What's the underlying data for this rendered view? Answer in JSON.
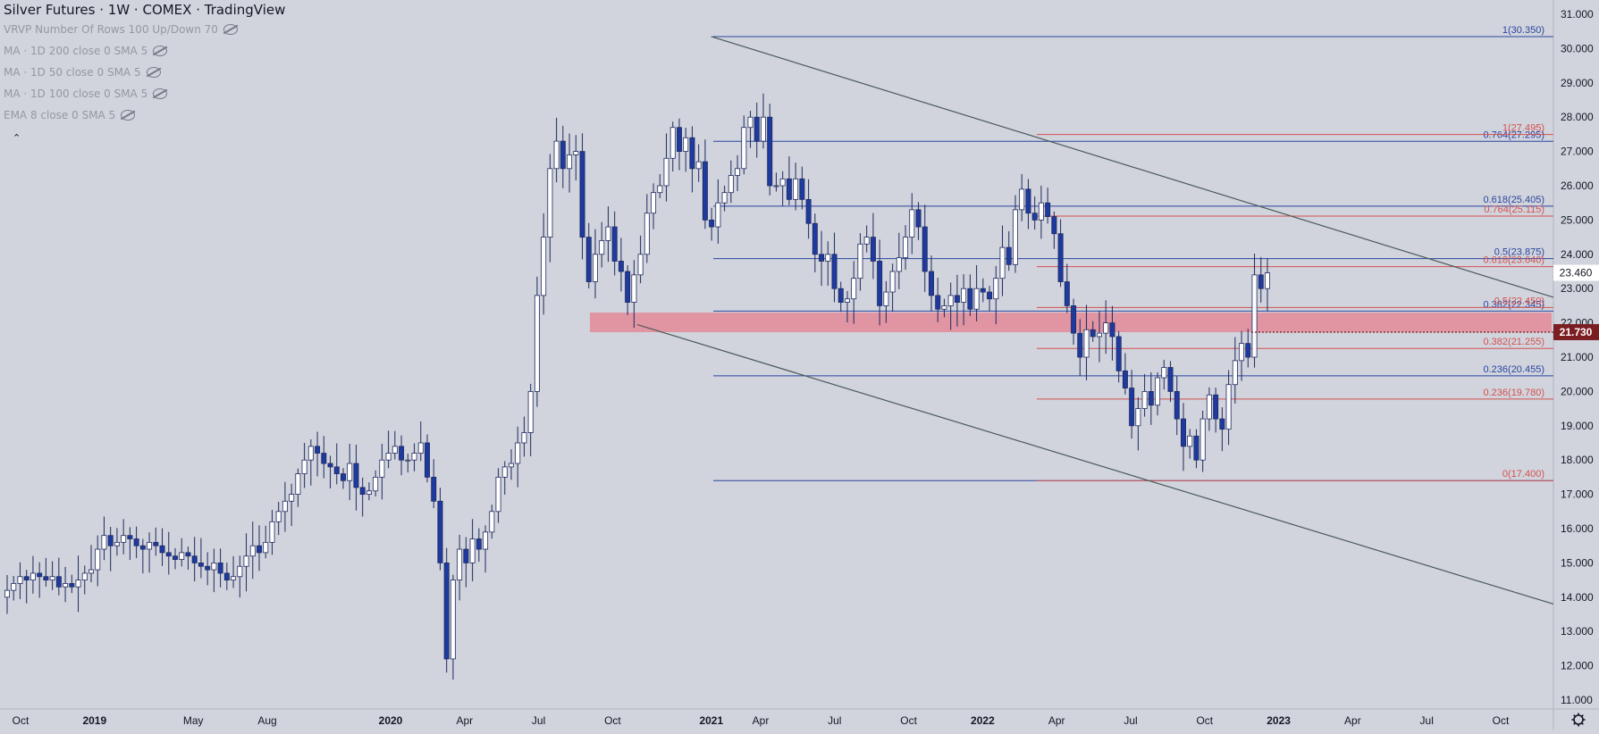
{
  "title": "Silver Futures · 1W · COMEX · TradingView",
  "indicators": [
    {
      "label": "VRVP Number Of Rows 100 Up/Down 70",
      "icon": "eye-hidden-icon"
    },
    {
      "label": "MA · 1D 200 close 0 SMA 5",
      "icon": "eye-hidden-icon"
    },
    {
      "label": "MA · 1D 50 close 0 SMA 5",
      "icon": "eye-hidden-icon"
    },
    {
      "label": "MA · 1D 100 close 0 SMA 5",
      "icon": "eye-hidden-icon"
    },
    {
      "label": "EMA 8 close 0 SMA 5",
      "icon": "eye-hidden-icon"
    }
  ],
  "collapse_icon": "chevron-up-icon",
  "settings_icon": "gear-icon",
  "colors": {
    "background": "#d1d4dc",
    "up": "#ffffff",
    "down": "#1e3a9e",
    "blue_fib": "#2a44a0",
    "red_fib": "#d4504f",
    "channel": "#4a5a5a",
    "zone": "#e57f8d",
    "price_badge": "#7a1e22"
  },
  "chart_data": {
    "type": "candlestick",
    "x_ticks": [
      "Oct",
      "2019",
      "May",
      "Aug",
      "2020",
      "Apr",
      "Jul",
      "Oct",
      "2021",
      "Apr",
      "Jul",
      "Oct",
      "2022",
      "Apr",
      "Jul",
      "Oct",
      "2023",
      "Apr",
      "Jul",
      "Oct"
    ],
    "y_ticks": [
      "31.000",
      "30.000",
      "29.000",
      "28.000",
      "27.000",
      "26.000",
      "25.000",
      "24.000",
      "23.000",
      "22.000",
      "21.000",
      "20.000",
      "19.000",
      "18.000",
      "17.000",
      "16.000",
      "15.000",
      "14.000",
      "13.000",
      "12.000",
      "11.000"
    ],
    "ylim": [
      10.75,
      31.3
    ],
    "last_price": {
      "value": 23.46,
      "label": "23.460"
    },
    "level_marker": {
      "value": 21.73,
      "label": "21.730"
    },
    "support_zone": [
      21.73,
      22.3
    ],
    "channel_lines": [
      {
        "from": [
          "2021-02",
          30.35
        ],
        "to": [
          "2023-11",
          23.0
        ]
      },
      {
        "from": [
          "2020-11",
          21.95
        ],
        "to": [
          "2023-11",
          14.05
        ]
      }
    ],
    "fib_blue": [
      {
        "ratio": "1",
        "value": 30.35,
        "label": "1(30.350)"
      },
      {
        "ratio": "0.764",
        "value": 27.295,
        "label": "0.764(27.295)"
      },
      {
        "ratio": "0.618",
        "value": 25.405,
        "label": "0.618(25.405)"
      },
      {
        "ratio": "0.5",
        "value": 23.875,
        "label": "0.5(23.875)"
      },
      {
        "ratio": "0.382",
        "value": 22.345,
        "label": "0.382(22.345)"
      },
      {
        "ratio": "0.236",
        "value": 20.455,
        "label": "0.236(20.455)"
      },
      {
        "ratio": "0",
        "value": 17.4,
        "label": ""
      }
    ],
    "fib_red": [
      {
        "ratio": "1",
        "value": 27.495,
        "label": "1(27.495)"
      },
      {
        "ratio": "0.764",
        "value": 25.115,
        "label": "0.764(25.115)"
      },
      {
        "ratio": "0.618",
        "value": 23.64,
        "label": "0.618(23.640)"
      },
      {
        "ratio": "0.5",
        "value": 22.45,
        "label": "0.5(22.450)"
      },
      {
        "ratio": "0.382",
        "value": 21.255,
        "label": "0.382(21.255)"
      },
      {
        "ratio": "0.236",
        "value": 19.78,
        "label": "0.236(19.780)"
      },
      {
        "ratio": "0",
        "value": 17.4,
        "label": "0(17.400)"
      }
    ],
    "weekly_closes": [
      14.2,
      14.4,
      14.6,
      14.5,
      14.7,
      14.6,
      14.5,
      14.6,
      14.3,
      14.4,
      14.3,
      14.5,
      14.7,
      14.8,
      15.4,
      15.8,
      15.5,
      15.6,
      15.8,
      15.7,
      15.5,
      15.4,
      15.6,
      15.5,
      15.3,
      15.2,
      15.1,
      15.3,
      15.2,
      15.0,
      14.9,
      14.8,
      15.0,
      14.7,
      14.5,
      14.6,
      14.9,
      15.2,
      15.5,
      15.3,
      15.6,
      16.2,
      16.5,
      16.8,
      17.0,
      17.6,
      18.0,
      18.4,
      18.2,
      17.9,
      17.8,
      17.6,
      17.4,
      17.9,
      17.2,
      17.0,
      17.1,
      17.5,
      18.0,
      18.2,
      18.4,
      18.0,
      18.0,
      18.2,
      18.5,
      17.5,
      16.8,
      15.0,
      12.2,
      14.5,
      15.4,
      15.0,
      15.7,
      15.4,
      15.9,
      16.5,
      17.5,
      17.8,
      17.9,
      18.5,
      18.8,
      20.0,
      22.8,
      24.5,
      26.5,
      27.3,
      26.5,
      26.9,
      27.0,
      24.5,
      23.2,
      24.0,
      24.4,
      24.8,
      23.8,
      23.5,
      22.6,
      23.4,
      24.0,
      25.2,
      25.8,
      26.0,
      26.8,
      27.7,
      27.0,
      27.4,
      26.5,
      26.7,
      25.0,
      24.8,
      25.5,
      25.8,
      26.3,
      26.5,
      27.7,
      28.0,
      27.3,
      28.0,
      26.0,
      26.0,
      26.2,
      25.6,
      26.2,
      25.6,
      24.9,
      24.0,
      23.8,
      24.0,
      23.0,
      22.6,
      22.7,
      23.3,
      24.3,
      24.5,
      23.8,
      22.5,
      22.9,
      23.5,
      23.9,
      24.5,
      25.3,
      24.8,
      23.5,
      22.8,
      22.4,
      22.5,
      22.8,
      22.6,
      23.0,
      22.4,
      23.0,
      22.9,
      22.7,
      23.3,
      24.2,
      23.7,
      25.3,
      25.9,
      25.2,
      25.0,
      25.5,
      25.1,
      24.6,
      23.2,
      22.5,
      21.7,
      21.0,
      21.8,
      21.6,
      21.7,
      22.0,
      21.6,
      20.6,
      20.1,
      19.0,
      19.5,
      20.0,
      19.6,
      20.4,
      20.7,
      20.0,
      19.2,
      18.4,
      18.7,
      18.0,
      19.2,
      19.9,
      19.2,
      18.9,
      20.2,
      20.9,
      21.4,
      21.0,
      23.4,
      23.0,
      23.46
    ]
  }
}
